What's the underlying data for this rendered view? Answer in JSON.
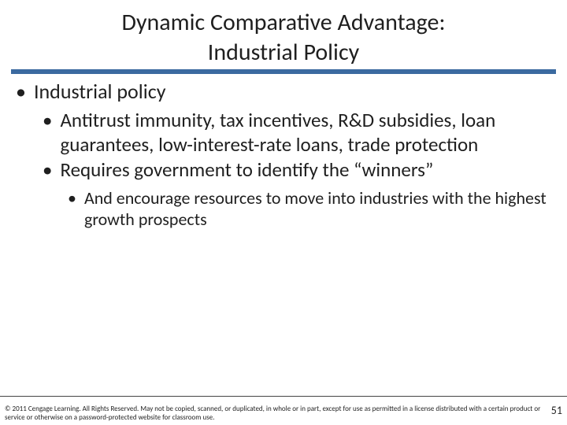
{
  "title_line1": "Dynamic Comparative Advantage:",
  "title_line2": "Industrial Policy",
  "bullets": {
    "l1": "Industrial policy",
    "l2a": "Antitrust immunity, tax incentives, R&D subsidies, loan guarantees, low-interest-rate loans, trade protection",
    "l2b": "Requires government to identify the “winners”",
    "l3": "And encourage resources to move into industries with the highest growth prospects"
  },
  "footer": "© 2011 Cengage Learning. All Rights Reserved. May not be copied, scanned, or duplicated, in whole or in part, except for use as permitted in a license distributed with a certain product or service or otherwise on a password-protected website for classroom use.",
  "page_number": "51",
  "colors": {
    "rule": "#3b6aa0",
    "text": "#1f1f1f",
    "bg": "#ffffff"
  }
}
